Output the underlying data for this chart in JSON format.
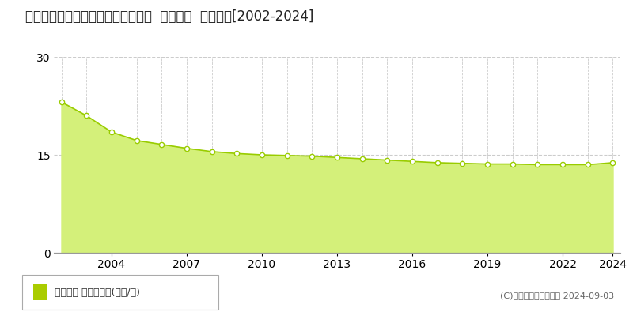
{
  "title": "愛知県常滑市大曽町５丁目６９番外  地価公示  地価推移[2002-2024]",
  "years": [
    2002,
    2003,
    2004,
    2005,
    2006,
    2007,
    2008,
    2009,
    2010,
    2011,
    2012,
    2013,
    2014,
    2015,
    2016,
    2017,
    2018,
    2019,
    2020,
    2021,
    2022,
    2023,
    2024
  ],
  "values": [
    23.1,
    21.0,
    18.5,
    17.2,
    16.6,
    16.0,
    15.5,
    15.2,
    15.0,
    14.9,
    14.8,
    14.6,
    14.4,
    14.2,
    14.0,
    13.8,
    13.7,
    13.6,
    13.6,
    13.5,
    13.5,
    13.5,
    13.8
  ],
  "line_color": "#99cc00",
  "fill_color": "#d4f07a",
  "marker_face": "#ffffff",
  "marker_edge": "#99cc00",
  "grid_color": "#cccccc",
  "background_color": "#ffffff",
  "plot_bg_color": "#ffffff",
  "ylim": [
    0,
    30
  ],
  "yticks": [
    0,
    15,
    30
  ],
  "xlabel_ticks": [
    2004,
    2007,
    2010,
    2013,
    2016,
    2019,
    2022,
    2024
  ],
  "legend_label": "地価公示 平均坪単価(万円/坪)",
  "copyright": "(C)土地価格ドットコム 2024-09-03",
  "legend_square_color": "#aacc00",
  "title_fontsize": 12,
  "tick_fontsize": 10
}
